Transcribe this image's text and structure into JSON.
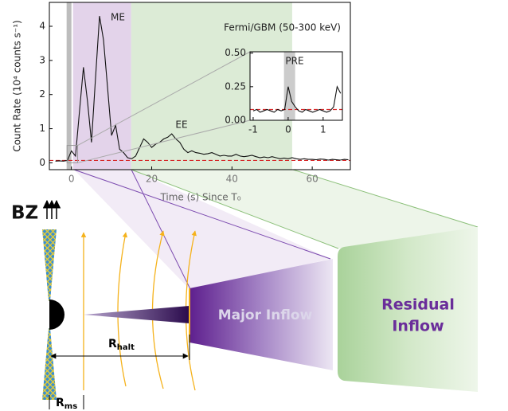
{
  "chart_data": [
    {
      "type": "line",
      "y_label": "Count Rate (10⁴ counts s⁻¹)",
      "x_label": "Time (s) Since T₀",
      "annotations": [
        "ME",
        "EE",
        "Fermi/GBM (50-300 keV)"
      ],
      "x": [
        -4,
        -3,
        -2,
        -1,
        0,
        1,
        2,
        3,
        4,
        5,
        6,
        7,
        8,
        9,
        10,
        11,
        12,
        13,
        14,
        15,
        16,
        17,
        18,
        19,
        20,
        21,
        22,
        23,
        24,
        25,
        26,
        27,
        28,
        29,
        30,
        31,
        32,
        33,
        34,
        35,
        36,
        37,
        38,
        39,
        40,
        41,
        42,
        43,
        44,
        45,
        46,
        47,
        48,
        49,
        50,
        51,
        52,
        53,
        54,
        55,
        56,
        57,
        58,
        59,
        60,
        61,
        62,
        63,
        64,
        65,
        66,
        67,
        68,
        69
      ],
      "values": [
        0.05,
        0.06,
        0.05,
        0.07,
        0.35,
        0.2,
        1.5,
        2.8,
        1.8,
        0.6,
        2.5,
        4.3,
        3.6,
        2.2,
        0.8,
        1.1,
        0.4,
        0.3,
        0.15,
        0.12,
        0.2,
        0.45,
        0.7,
        0.6,
        0.45,
        0.55,
        0.6,
        0.7,
        0.75,
        0.85,
        0.7,
        0.6,
        0.4,
        0.3,
        0.35,
        0.3,
        0.28,
        0.25,
        0.27,
        0.3,
        0.25,
        0.2,
        0.22,
        0.2,
        0.2,
        0.25,
        0.2,
        0.18,
        0.2,
        0.22,
        0.18,
        0.15,
        0.17,
        0.15,
        0.18,
        0.15,
        0.12,
        0.14,
        0.12,
        0.15,
        0.12,
        0.1,
        0.12,
        0.1,
        0.1,
        0.09,
        0.11,
        0.1,
        0.08,
        0.1,
        0.09,
        0.08,
        0.1,
        0.09
      ],
      "color": "#111111",
      "background_level": 0.07,
      "background_color": "#d62728",
      "regions": [
        {
          "range": [
            -1.2,
            0
          ],
          "color": "#bdbdbd"
        },
        {
          "range": [
            0.4,
            14.9
          ],
          "color": "#e3d3ea"
        },
        {
          "range": [
            14.9,
            55
          ],
          "color": "#dcebd6"
        }
      ],
      "xlim": [
        -5.5,
        69.5
      ],
      "ylim": [
        -0.2,
        4.7
      ],
      "xticks": [
        0,
        20,
        40,
        60
      ],
      "yticks": [
        0,
        1,
        2,
        3,
        4
      ]
    },
    {
      "type": "line",
      "annotations": [
        "PRE"
      ],
      "x": [
        -1.0,
        -0.9,
        -0.8,
        -0.7,
        -0.6,
        -0.5,
        -0.4,
        -0.3,
        -0.2,
        -0.1,
        0.0,
        0.1,
        0.2,
        0.3,
        0.4,
        0.5,
        0.6,
        0.7,
        0.8,
        0.9,
        1.0,
        1.1,
        1.2,
        1.3,
        1.4,
        1.5
      ],
      "values": [
        0.07,
        0.08,
        0.06,
        0.07,
        0.08,
        0.07,
        0.06,
        0.08,
        0.07,
        0.08,
        0.25,
        0.14,
        0.1,
        0.07,
        0.06,
        0.08,
        0.07,
        0.06,
        0.07,
        0.08,
        0.07,
        0.06,
        0.07,
        0.1,
        0.25,
        0.2
      ],
      "color": "#111111",
      "background_level": 0.08,
      "background_color": "#d62728",
      "regions": [
        {
          "range": [
            -0.12,
            0.2
          ],
          "color": "#cccccc"
        }
      ],
      "xlim": [
        -1.09,
        1.55
      ],
      "ylim": [
        0,
        0.51
      ],
      "xticks": [
        -1,
        0,
        1
      ],
      "yticks": [
        {
          "value": 0,
          "label": "0.00"
        },
        {
          "value": 0.25,
          "label": "0.25"
        },
        {
          "value": 0.5,
          "label": "0.50"
        }
      ]
    }
  ],
  "diagram": {
    "bz": "BZ",
    "major_inflow": "Major Inflow",
    "residual_inflow": [
      "Residual",
      "Inflow"
    ],
    "r_halt": {
      "main": "R",
      "sub": "halt"
    },
    "r_ms": {
      "main": "R",
      "sub": "ms"
    }
  }
}
